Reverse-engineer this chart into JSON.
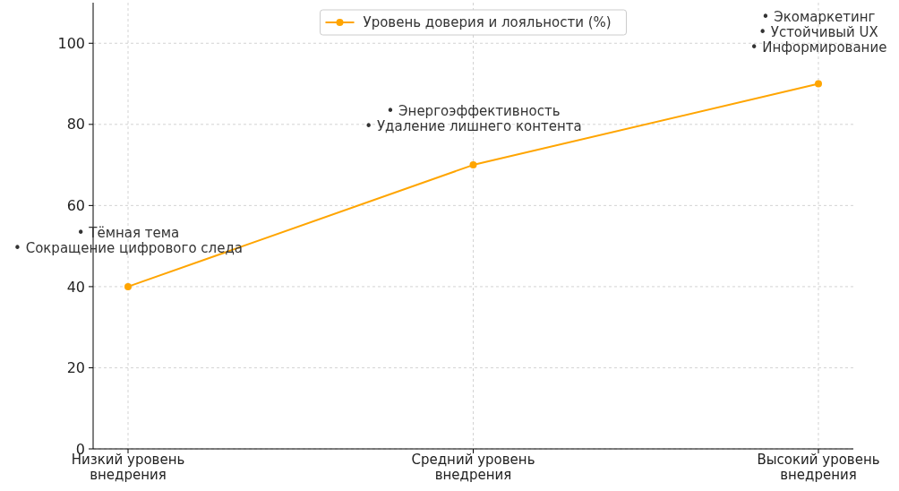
{
  "chart_data": {
    "type": "line",
    "categories": [
      "Низкий уровень внедрения",
      "Средний уровень внедрения",
      "Высокий уровень внедрения"
    ],
    "series": [
      {
        "name": "Уровень доверия и лояльности (%)",
        "color": "#ffa500",
        "values": [
          40,
          70,
          90
        ]
      }
    ],
    "ylim": [
      0,
      110
    ],
    "yticks": [
      0,
      20,
      40,
      60,
      80,
      100
    ],
    "grid": true,
    "legend": "top",
    "marker": "circle",
    "line_style": "solid",
    "annotations": [
      "• Тёмная тема\n• Сокращение цифрового следа",
      "• Энергоэффективность\n• Удаление лишнего контента",
      "• Экомаркетинг\n• Устойчивый UX\n• Информирование"
    ]
  }
}
